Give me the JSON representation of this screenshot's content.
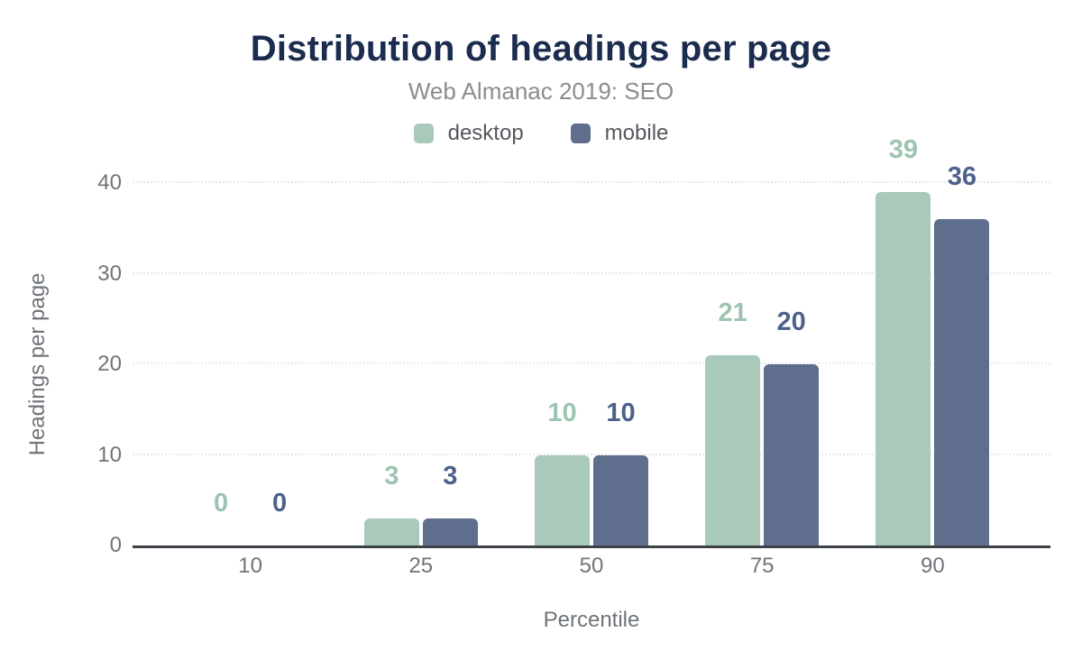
{
  "chart_data": {
    "type": "bar",
    "title": "Distribution of headings per page",
    "subtitle": "Web Almanac 2019: SEO",
    "xlabel": "Percentile",
    "ylabel": "Headings per page",
    "categories": [
      "10",
      "25",
      "50",
      "75",
      "90"
    ],
    "series": [
      {
        "name": "desktop",
        "color": "#a9c9ba",
        "label_color": "#9cc4af",
        "values": [
          0,
          3,
          10,
          21,
          39
        ]
      },
      {
        "name": "mobile",
        "color": "#5f6e8c",
        "label_color": "#4d6189",
        "values": [
          0,
          3,
          10,
          20,
          36
        ]
      }
    ],
    "yticks": [
      0,
      10,
      20,
      30,
      40
    ],
    "ylim": [
      0,
      40
    ],
    "grid": "horizontal-dotted",
    "grid_color": "#e7eae9",
    "axis_line_color": "#3c4248",
    "title_color": "#1b2c4e",
    "subtitle_color": "#8a8d90",
    "tick_label_color": "#6f7479",
    "legend_position": "top-center"
  }
}
